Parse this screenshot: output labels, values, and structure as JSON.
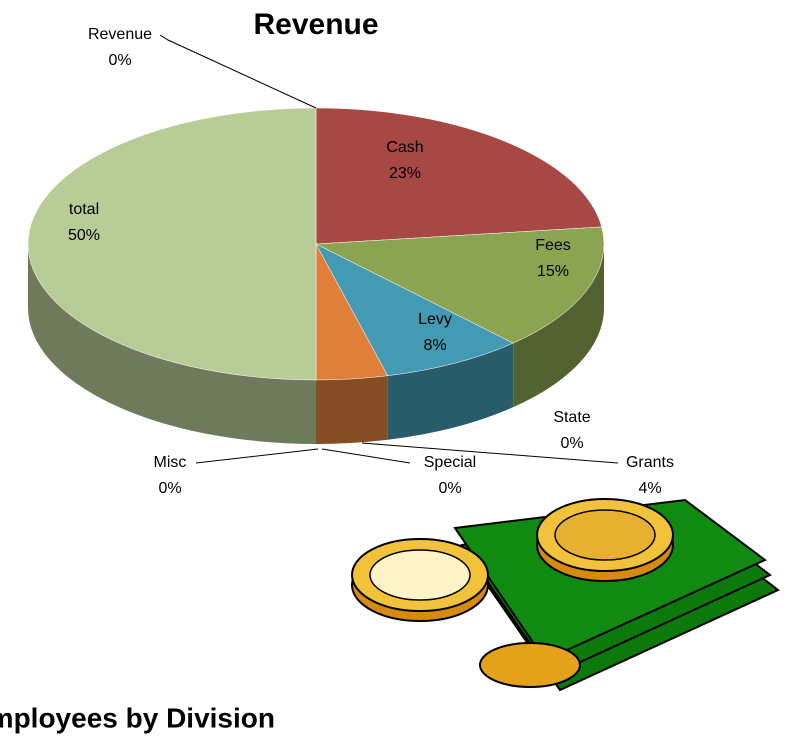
{
  "chart_data": {
    "type": "pie3d",
    "title": "Revenue",
    "categories": [
      "Revenue",
      "Cash",
      "Fees",
      "Levy",
      "State",
      "Grants",
      "Special",
      "Misc",
      "total"
    ],
    "values": [
      0,
      23,
      15,
      8,
      0,
      4,
      0,
      0,
      50
    ],
    "value_labels": [
      "0%",
      "23%",
      "15%",
      "8%",
      "0%",
      "4%",
      "0%",
      "0%",
      "50%"
    ],
    "colors": [
      "#4f81bd",
      "#a84845",
      "#8ba452",
      "#4499b3",
      "#7b5fa0",
      "#e07f3a",
      "#9bb7d9",
      "#d99694",
      "#b8cc97"
    ]
  },
  "next_title": "Employees by Division"
}
